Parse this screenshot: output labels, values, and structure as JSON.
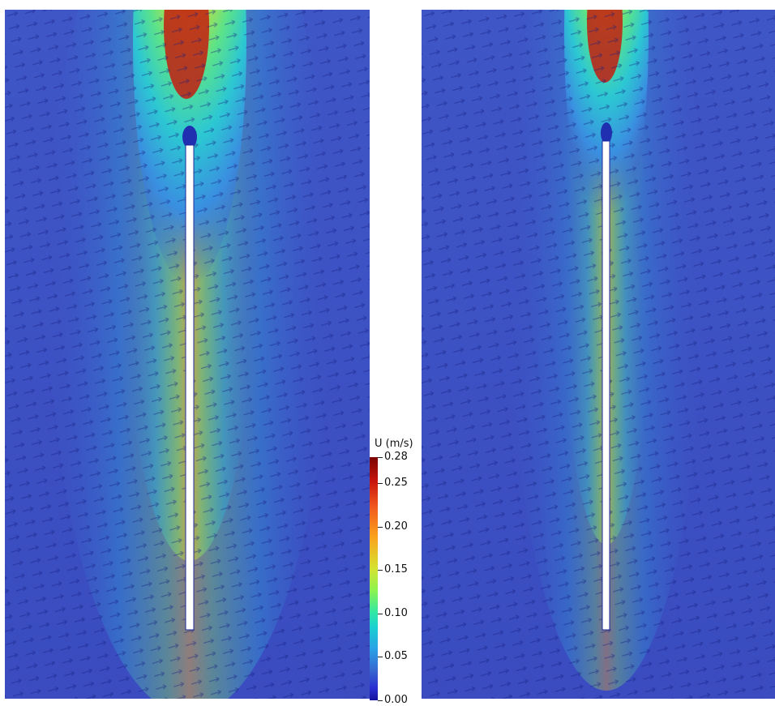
{
  "figure": {
    "panels": [
      {
        "name": "left",
        "icon": "velocity-field-left"
      },
      {
        "name": "right",
        "icon": "velocity-field-right"
      }
    ],
    "colors": {
      "background_field": "#3b4fc4",
      "arrow": "#101a7a",
      "jet_core": "#c0291f",
      "plate": "#ffffff"
    }
  },
  "colorbar": {
    "title": "U (m/s)",
    "ticks": [
      "0.28",
      "0.25",
      "0.20",
      "0.15",
      "0.10",
      "0.05",
      "0.00"
    ],
    "tick_values": [
      0.28,
      0.25,
      0.2,
      0.15,
      0.1,
      0.05,
      0.0
    ],
    "range": [
      0.0,
      0.28
    ]
  }
}
